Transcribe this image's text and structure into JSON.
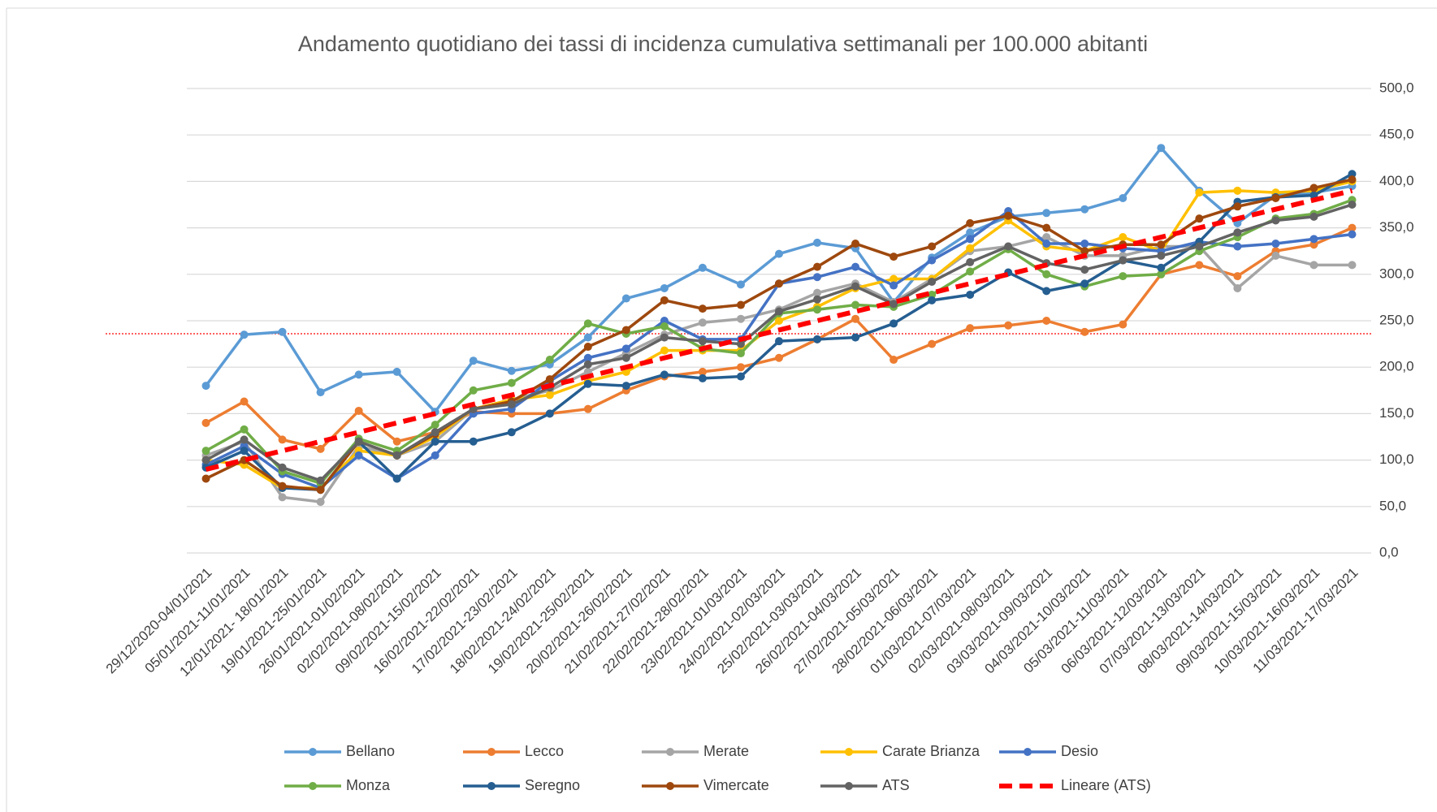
{
  "chart_data": {
    "type": "line",
    "title": "Andamento quotidiano dei tassi di incidenza cumulativa settimanali per 100.000 abitanti",
    "categories": [
      "29/12/2020-04/01/2021",
      "05/01/2021-11/01/2021",
      "12/01/2021- 18/01/2021",
      "19/01/2021-25/01/2021",
      "26/01/2021-01/02/2021",
      "02/02/2021-08/02/2021",
      "09/02/2021-15/02/2021",
      "16/02/2021-22/02/2021",
      "17/02/2021-23/02/2021",
      "18/02/2021-24/02/2021",
      "19/02/2021-25/02/2021",
      "20/02/2021-26/02/2021",
      "21/02/2021-27/02/2021",
      "22/02/2021-28/02/2021",
      "23/02/2021-01/03/2021",
      "24/02/2021-02/03/2021",
      "25/02/2021-03/03/2021",
      "26/02/2021-04/03/2021",
      "27/02/2021-05/03/2021",
      "28/02/2021-06/03/2021",
      "01/03/2021-07/03/2021",
      "02/03/2021-08/03/2021",
      "03/03/2021-09/03/2021",
      "04/03/2021-10/03/2021",
      "05/03/2021-11/03/2021",
      "06/03/2021-12/03/2021",
      "07/03/2021-13/03/2021",
      "08/03/2021-14/03/2021",
      "09/03/2021-15/03/2021",
      "10/03/2021-16/03/2021",
      "11/03/2021-17/03/2021"
    ],
    "series": [
      {
        "name": "Bellano",
        "color": "#5b9bd5",
        "values": [
          180,
          235,
          238,
          173,
          192,
          195,
          152,
          207,
          196,
          203,
          232,
          274,
          285,
          307,
          289,
          322,
          334,
          328,
          270,
          318,
          345,
          362,
          366,
          370,
          382,
          436,
          390,
          355,
          385,
          388,
          395
        ]
      },
      {
        "name": "Lecco",
        "color": "#ed7d31",
        "values": [
          140,
          163,
          122,
          112,
          153,
          120,
          130,
          152,
          150,
          150,
          155,
          175,
          190,
          195,
          200,
          210,
          230,
          252,
          208,
          225,
          242,
          245,
          250,
          238,
          246,
          300,
          310,
          298,
          325,
          332,
          350
        ]
      },
      {
        "name": "Merate",
        "color": "#a5a5a5",
        "values": [
          105,
          120,
          60,
          55,
          115,
          105,
          120,
          155,
          165,
          175,
          195,
          215,
          235,
          248,
          252,
          262,
          280,
          290,
          270,
          295,
          325,
          330,
          340,
          320,
          320,
          330,
          330,
          285,
          320,
          310,
          310
        ]
      },
      {
        "name": "Carate Brianza",
        "color": "#ffc000",
        "values": [
          100,
          95,
          70,
          70,
          110,
          105,
          125,
          155,
          165,
          170,
          185,
          195,
          218,
          218,
          218,
          250,
          265,
          285,
          295,
          295,
          328,
          358,
          330,
          325,
          340,
          325,
          388,
          390,
          388,
          390,
          400
        ]
      },
      {
        "name": "Desio",
        "color": "#4472c4",
        "values": [
          95,
          115,
          85,
          70,
          105,
          80,
          105,
          150,
          155,
          185,
          210,
          220,
          250,
          230,
          230,
          290,
          297,
          308,
          288,
          315,
          338,
          368,
          333,
          333,
          328,
          325,
          335,
          330,
          333,
          338,
          343
        ]
      },
      {
        "name": "Monza",
        "color": "#70ad47",
        "values": [
          110,
          133,
          88,
          75,
          123,
          110,
          138,
          175,
          183,
          208,
          247,
          236,
          244,
          220,
          215,
          258,
          262,
          267,
          265,
          278,
          303,
          327,
          300,
          287,
          298,
          300,
          325,
          340,
          360,
          365,
          380
        ]
      },
      {
        "name": "Seregno",
        "color": "#255e91",
        "values": [
          92,
          110,
          70,
          68,
          120,
          80,
          120,
          120,
          130,
          150,
          182,
          180,
          192,
          188,
          190,
          228,
          230,
          232,
          247,
          272,
          278,
          302,
          282,
          290,
          315,
          307,
          335,
          378,
          383,
          385,
          408
        ]
      },
      {
        "name": "Vimercate",
        "color": "#9e480e",
        "values": [
          80,
          100,
          72,
          68,
          120,
          105,
          128,
          155,
          163,
          187,
          222,
          240,
          272,
          263,
          267,
          290,
          308,
          333,
          319,
          330,
          355,
          363,
          350,
          325,
          332,
          332,
          360,
          373,
          382,
          393,
          402
        ]
      },
      {
        "name": "ATS",
        "color": "#636363",
        "values": [
          100,
          122,
          92,
          78,
          120,
          105,
          130,
          155,
          160,
          178,
          203,
          210,
          232,
          228,
          225,
          260,
          273,
          287,
          268,
          292,
          313,
          330,
          312,
          305,
          315,
          320,
          330,
          345,
          358,
          362,
          375
        ]
      },
      {
        "name": "Lineare (ATS)",
        "color": "#ff0000",
        "dashed": true,
        "values": [
          90,
          100,
          110,
          120,
          130,
          140,
          150,
          160,
          170,
          180,
          190,
          200,
          210,
          220,
          230,
          240,
          250,
          260,
          270,
          280,
          290,
          300,
          310,
          320,
          330,
          340,
          350,
          360,
          370,
          380,
          390
        ]
      }
    ],
    "reference_line": 236,
    "ylim": [
      0,
      500
    ],
    "yticks": [
      {
        "value": 0,
        "label": "0,0"
      },
      {
        "value": 50,
        "label": "50,0"
      },
      {
        "value": 100,
        "label": "100,0"
      },
      {
        "value": 150,
        "label": "150,0"
      },
      {
        "value": 200,
        "label": "200,0"
      },
      {
        "value": 250,
        "label": "250,0"
      },
      {
        "value": 300,
        "label": "300,0"
      },
      {
        "value": 350,
        "label": "350,0"
      },
      {
        "value": 400,
        "label": "400,0"
      },
      {
        "value": 450,
        "label": "450,0"
      },
      {
        "value": 500,
        "label": "500,0"
      }
    ],
    "grid": true,
    "y_axis_side": "right",
    "legend": "bottom"
  }
}
